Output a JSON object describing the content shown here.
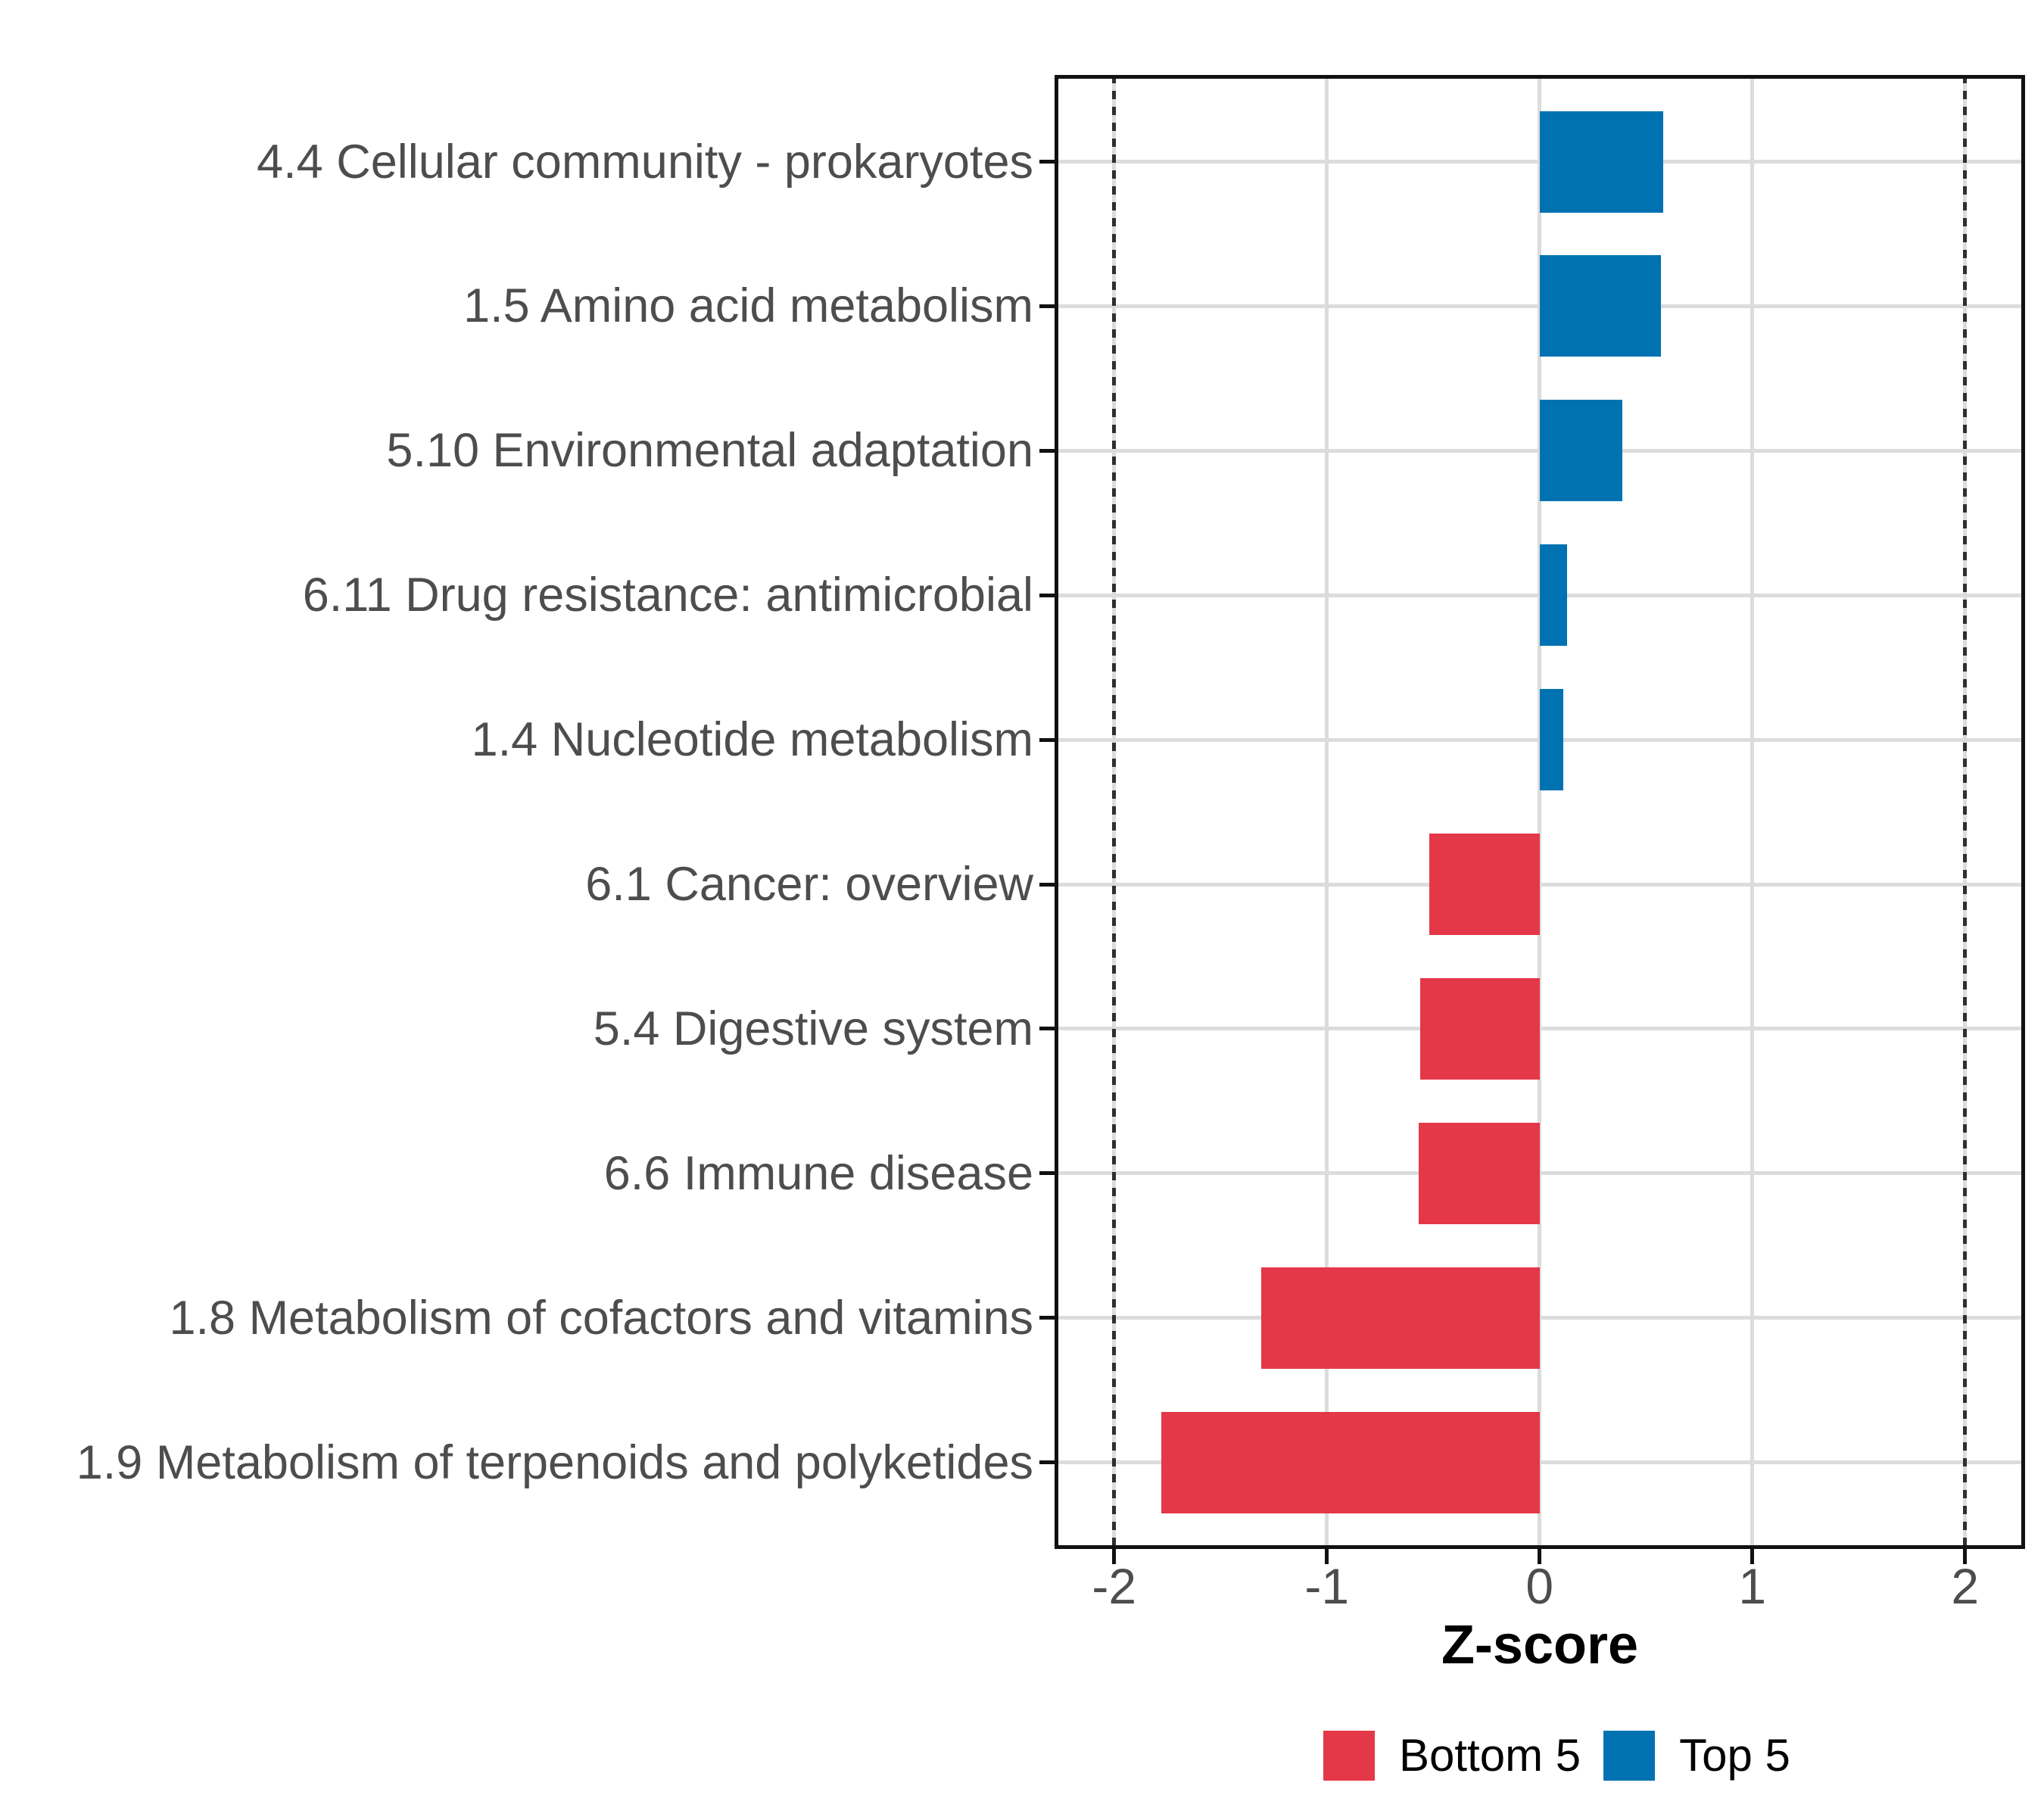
{
  "chart_data": {
    "type": "bar",
    "orientation": "horizontal",
    "title": "",
    "xlabel": "Z-score",
    "ylabel": "",
    "xlim": [
      -2.28,
      2.28
    ],
    "x_ticks": [
      "-2",
      "-1",
      "0",
      "1",
      "2"
    ],
    "x_tick_values": [
      -2,
      -1,
      0,
      1,
      2
    ],
    "reference_lines_x": [
      -2,
      2
    ],
    "grid": true,
    "legend_position": "bottom",
    "categories": [
      "4.4 Cellular community - prokaryotes",
      "1.5 Amino acid metabolism",
      "5.10 Environmental adaptation",
      "6.11 Drug resistance: antimicrobial",
      "1.4 Nucleotide metabolism",
      "6.1 Cancer: overview",
      "5.4 Digestive system",
      "6.6 Immune disease",
      "1.8 Metabolism of cofactors and vitamins",
      "1.9 Metabolism of terpenoids and polyketides"
    ],
    "values": [
      0.58,
      0.57,
      0.39,
      0.13,
      0.11,
      -0.52,
      -0.56,
      -0.57,
      -1.31,
      -1.78
    ],
    "groups": [
      "top",
      "top",
      "top",
      "top",
      "top",
      "bottom",
      "bottom",
      "bottom",
      "bottom",
      "bottom"
    ],
    "colors": {
      "top": "#0072B2",
      "bottom": "#E43849"
    },
    "grid_color": "#DCDCDC",
    "axis_color": "#111111",
    "tick_text_color": "#4D4D4D"
  },
  "legend": {
    "items": [
      {
        "label": "Bottom 5",
        "group": "bottom"
      },
      {
        "label": "Top 5",
        "group": "top"
      }
    ]
  }
}
